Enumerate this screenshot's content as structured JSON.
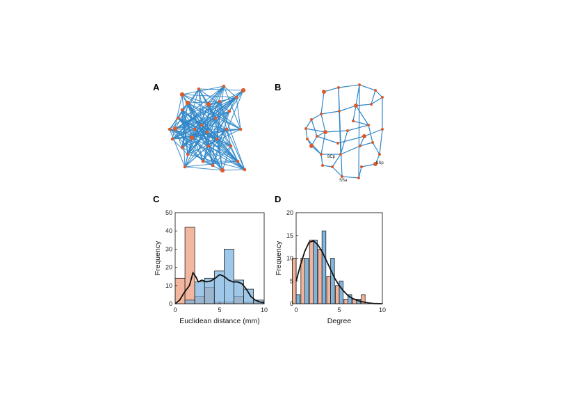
{
  "panels": {
    "A": {
      "letter": "A"
    },
    "B": {
      "letter": "B"
    },
    "C": {
      "letter": "C"
    },
    "D": {
      "letter": "D"
    }
  },
  "network_B_labels": [
    "8Cp",
    "8Sp",
    "SSa"
  ],
  "colors": {
    "blue": "#2f86c8",
    "orange": "#dd5a2b",
    "orange_fill": "#f2b39b",
    "blue_fill": "#7fb6e0",
    "overlap_fill": "#b97f7a",
    "curve": "#111111"
  },
  "chart_data": [
    {
      "type": "bar",
      "panel": "C",
      "xlabel": "Euclidean distance (mm)",
      "ylabel": "Frequency",
      "xlim": [
        0,
        10
      ],
      "ylim": [
        0,
        50
      ],
      "xticks": [
        0,
        5,
        10
      ],
      "yticks": [
        0,
        10,
        20,
        30,
        40,
        50
      ],
      "bin_edges": [
        0,
        1.1,
        2.2,
        3.3,
        4.4,
        5.5,
        6.6,
        7.7,
        8.8,
        9.9
      ],
      "series": [
        {
          "color": "orange",
          "values": [
            14,
            42,
            4,
            9,
            1,
            1,
            4,
            1,
            1
          ]
        },
        {
          "color": "blue",
          "values": [
            0,
            2,
            12,
            14,
            18,
            30,
            13,
            8,
            2
          ]
        }
      ],
      "curve": {
        "x": [
          0,
          0.5,
          1.0,
          1.6,
          2.0,
          2.3,
          2.6,
          3.0,
          3.5,
          4.0,
          4.5,
          5.0,
          5.5,
          6.0,
          6.5,
          7.0,
          7.5,
          8.0,
          8.5,
          9.0,
          9.5,
          10.0
        ],
        "y": [
          0,
          2,
          6,
          10,
          17,
          15,
          12,
          13,
          12,
          12.5,
          14,
          16,
          15,
          13,
          12,
          12,
          11,
          8,
          4,
          2,
          1,
          0.5
        ]
      }
    },
    {
      "type": "bar",
      "panel": "D",
      "xlabel": "Degree",
      "ylabel": "Frequency",
      "xlim": [
        0,
        10
      ],
      "ylim": [
        0,
        20
      ],
      "xticks": [
        0,
        5,
        10
      ],
      "yticks": [
        0,
        5,
        10,
        15,
        20
      ],
      "bar_width": 0.45,
      "series": [
        {
          "color": "orange",
          "x": [
            0,
            1,
            2,
            3,
            4,
            5,
            6,
            7,
            8
          ],
          "values": [
            10,
            10,
            14,
            12,
            6,
            4,
            1,
            1,
            2
          ]
        },
        {
          "color": "blue",
          "x": [
            0,
            1,
            2,
            3,
            4,
            5,
            6,
            7,
            8
          ],
          "values": [
            2,
            10,
            14,
            16,
            10,
            5,
            2,
            1,
            0
          ]
        }
      ],
      "curve": {
        "x": [
          0,
          0.5,
          1.0,
          1.5,
          2.0,
          2.5,
          3.0,
          3.5,
          4.0,
          4.5,
          5.0,
          5.5,
          6.0,
          6.5,
          7.0,
          7.5,
          8.0,
          8.5,
          9.0,
          10.0
        ],
        "y": [
          5,
          8.5,
          11.5,
          13.5,
          13.8,
          13,
          11.5,
          9.5,
          7.5,
          5.5,
          4,
          2.8,
          1.8,
          1.2,
          0.8,
          0.5,
          0.3,
          0.15,
          0.05,
          0
        ]
      }
    }
  ]
}
